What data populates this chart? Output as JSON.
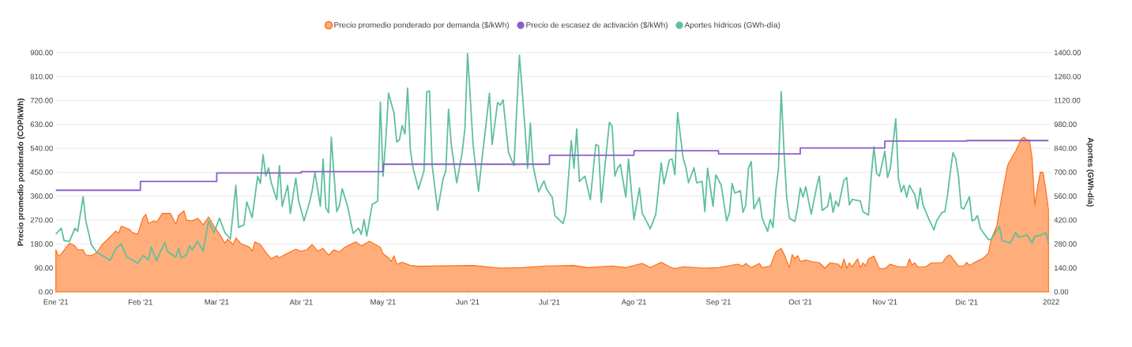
{
  "chart_data": {
    "type": "line",
    "ylabel": "Precio promedio ponderado (COP/kWh)",
    "y2label": "Aportes (GWh-día)",
    "xlim": [
      "2021-01-01",
      "2022-01-01"
    ],
    "xticks": [
      {
        "value": "2021-01-01",
        "label": "Ene '21"
      },
      {
        "value": "2021-02-01",
        "label": "Feb '21"
      },
      {
        "value": "2021-03-01",
        "label": "Mar '21"
      },
      {
        "value": "2021-04-01",
        "label": "Abr '21"
      },
      {
        "value": "2021-05-01",
        "label": "May '21"
      },
      {
        "value": "2021-06-01",
        "label": "Jun '21"
      },
      {
        "value": "2021-07-01",
        "label": "Jul '21"
      },
      {
        "value": "2021-08-01",
        "label": "Ago '21"
      },
      {
        "value": "2021-09-01",
        "label": "Sep '21"
      },
      {
        "value": "2021-10-01",
        "label": "Oct '21"
      },
      {
        "value": "2021-11-01",
        "label": "Nov '21"
      },
      {
        "value": "2021-12-01",
        "label": "Dic '21"
      },
      {
        "value": "2022-01-01",
        "label": "2022"
      }
    ],
    "ylim": [
      0,
      900
    ],
    "yticks": [
      {
        "value": 0,
        "label": "0.00"
      },
      {
        "value": 90,
        "label": "90.00"
      },
      {
        "value": 180,
        "label": "180.00"
      },
      {
        "value": 270,
        "label": "270.00"
      },
      {
        "value": 360,
        "label": "360.00"
      },
      {
        "value": 450,
        "label": "450.00"
      },
      {
        "value": 540,
        "label": "540.00"
      },
      {
        "value": 630,
        "label": "630.00"
      },
      {
        "value": 720,
        "label": "720.00"
      },
      {
        "value": 810,
        "label": "810.00"
      },
      {
        "value": 900,
        "label": "900.00"
      }
    ],
    "y2lim": [
      0,
      1400
    ],
    "y2ticks": [
      {
        "value": 0,
        "label": "0.00"
      },
      {
        "value": 140,
        "label": "140.00"
      },
      {
        "value": 280,
        "label": "280.00"
      },
      {
        "value": 420,
        "label": "420.00"
      },
      {
        "value": 560,
        "label": "560.00"
      },
      {
        "value": 700,
        "label": "700.00"
      },
      {
        "value": 840,
        "label": "840.00"
      },
      {
        "value": 980,
        "label": "980.00"
      },
      {
        "value": 1120,
        "label": "1120.00"
      },
      {
        "value": 1260,
        "label": "1260.00"
      },
      {
        "value": 1400,
        "label": "1400.00"
      }
    ],
    "grid": "y",
    "legend": "top",
    "series": [
      {
        "name": "Precio promedio ponderado por demanda ($/kWh)",
        "type": "area",
        "color": "#ff6a0e",
        "x": [
          "2021-01-01",
          "2021-01-02",
          "2021-01-03",
          "2021-01-06",
          "2021-01-08",
          "2021-01-09",
          "2021-01-11",
          "2021-01-12",
          "2021-01-14",
          "2021-01-16",
          "2021-01-18",
          "2021-01-20",
          "2021-01-23",
          "2021-01-24",
          "2021-01-25",
          "2021-01-28",
          "2021-01-29",
          "2021-01-31",
          "2021-02-02",
          "2021-02-03",
          "2021-02-04",
          "2021-02-06",
          "2021-02-07",
          "2021-02-09",
          "2021-02-12",
          "2021-02-14",
          "2021-02-15",
          "2021-02-17",
          "2021-02-18",
          "2021-02-20",
          "2021-02-22",
          "2021-02-24",
          "2021-02-26",
          "2021-02-28",
          "2021-03-02",
          "2021-03-04",
          "2021-03-05",
          "2021-03-07",
          "2021-03-08",
          "2021-03-10",
          "2021-03-13",
          "2021-03-14",
          "2021-03-15",
          "2021-03-17",
          "2021-03-19",
          "2021-03-21",
          "2021-03-23",
          "2021-03-24",
          "2021-03-26",
          "2021-03-28",
          "2021-03-30",
          "2021-04-01",
          "2021-04-03",
          "2021-04-05",
          "2021-04-07",
          "2021-04-09",
          "2021-04-11",
          "2021-04-13",
          "2021-04-15",
          "2021-04-17",
          "2021-04-18",
          "2021-04-21",
          "2021-04-23",
          "2021-04-26",
          "2021-04-30",
          "2021-05-01",
          "2021-05-03",
          "2021-05-04",
          "2021-05-05",
          "2021-05-06",
          "2021-05-08",
          "2021-05-11",
          "2021-05-14",
          "2021-06-03",
          "2021-06-13",
          "2021-06-21",
          "2021-06-30",
          "2021-07-10",
          "2021-07-15",
          "2021-07-24",
          "2021-07-29",
          "2021-08-04",
          "2021-08-07",
          "2021-08-11",
          "2021-08-14",
          "2021-08-16",
          "2021-08-19",
          "2021-08-27",
          "2021-09-01",
          "2021-09-08",
          "2021-09-10",
          "2021-09-11",
          "2021-09-13",
          "2021-09-16",
          "2021-09-17",
          "2021-09-20",
          "2021-09-22",
          "2021-09-24",
          "2021-09-25",
          "2021-09-27",
          "2021-09-28",
          "2021-09-29",
          "2021-09-30",
          "2021-10-01",
          "2021-10-03",
          "2021-10-05",
          "2021-10-08",
          "2021-10-10",
          "2021-10-12",
          "2021-10-15",
          "2021-10-16",
          "2021-10-17",
          "2021-10-18",
          "2021-10-19",
          "2021-10-20",
          "2021-10-22",
          "2021-10-23",
          "2021-10-24",
          "2021-10-25",
          "2021-10-26",
          "2021-10-28",
          "2021-10-30",
          "2021-11-01",
          "2021-11-03",
          "2021-11-06",
          "2021-11-09",
          "2021-11-10",
          "2021-11-11",
          "2021-11-12",
          "2021-11-13",
          "2021-11-16",
          "2021-11-18",
          "2021-11-22",
          "2021-11-24",
          "2021-11-25",
          "2021-11-28",
          "2021-11-30",
          "2021-12-01",
          "2021-12-02",
          "2021-12-04",
          "2021-12-07",
          "2021-12-09",
          "2021-12-10",
          "2021-12-12",
          "2021-12-14",
          "2021-12-16",
          "2021-12-18",
          "2021-12-19",
          "2021-12-21",
          "2021-12-22",
          "2021-12-23",
          "2021-12-24",
          "2021-12-25",
          "2021-12-26",
          "2021-12-27",
          "2021-12-28",
          "2021-12-29",
          "2021-12-30",
          "2021-12-31"
        ],
        "values": [
          158,
          134,
          143,
          183,
          173,
          158,
          158,
          138,
          136,
          148,
          178,
          198,
          229,
          220,
          247,
          235,
          223,
          217,
          279,
          292,
          257,
          267,
          262,
          295,
          295,
          255,
          287,
          305,
          269,
          267,
          277,
          252,
          282,
          247,
          217,
          183,
          198,
          178,
          203,
          180,
          168,
          153,
          188,
          178,
          148,
          124,
          136,
          128,
          140,
          150,
          160,
          153,
          158,
          178,
          153,
          163,
          138,
          158,
          150,
          168,
          173,
          188,
          173,
          190,
          168,
          143,
          128,
          114,
          136,
          104,
          111,
          99,
          96,
          99,
          89,
          91,
          97,
          99,
          91,
          97,
          91,
          107,
          91,
          111,
          94,
          87,
          94,
          89,
          91,
          104,
          97,
          107,
          91,
          107,
          91,
          97,
          150,
          163,
          143,
          91,
          140,
          124,
          136,
          114,
          119,
          114,
          109,
          89,
          109,
          104,
          89,
          124,
          89,
          109,
          94,
          124,
          91,
          109,
          97,
          124,
          134,
          87,
          87,
          104,
          94,
          94,
          124,
          101,
          109,
          94,
          94,
          109,
          109,
          136,
          138,
          97,
          97,
          111,
          99,
          111,
          126,
          146,
          198,
          247,
          366,
          475,
          514,
          529,
          576,
          582,
          572,
          572,
          504,
          326,
          396,
          450,
          450,
          388,
          309
        ]
      },
      {
        "name": "Precio de escasez de activación ($/kWh)",
        "type": "step",
        "color": "#8b5fc9",
        "x": [
          "2021-01-01",
          "2021-02-01",
          "2021-03-01",
          "2021-04-01",
          "2021-05-01",
          "2021-07-01",
          "2021-08-01",
          "2021-09-01",
          "2021-10-01",
          "2021-11-01",
          "2021-12-01",
          "2021-12-31"
        ],
        "values": [
          382,
          415,
          447,
          452,
          480,
          514,
          531,
          519,
          541,
          567,
          569,
          569
        ]
      },
      {
        "name": "Aportes hídricos (GWh-día)",
        "type": "line",
        "color": "#5fbf9f",
        "axis": "y2",
        "x": [
          "2021-01-01",
          "2021-01-03",
          "2021-01-04",
          "2021-01-06",
          "2021-01-08",
          "2021-01-09",
          "2021-01-11",
          "2021-01-12",
          "2021-01-14",
          "2021-01-16",
          "2021-01-19",
          "2021-01-21",
          "2021-01-23",
          "2021-01-25",
          "2021-01-27",
          "2021-01-29",
          "2021-01-31",
          "2021-02-02",
          "2021-02-04",
          "2021-02-05",
          "2021-02-07",
          "2021-02-08",
          "2021-02-10",
          "2021-02-11",
          "2021-02-14",
          "2021-02-15",
          "2021-02-16",
          "2021-02-18",
          "2021-02-19",
          "2021-02-20",
          "2021-02-22",
          "2021-02-24",
          "2021-02-26",
          "2021-02-28",
          "2021-03-02",
          "2021-03-04",
          "2021-03-06",
          "2021-03-08",
          "2021-03-09",
          "2021-03-11",
          "2021-03-12",
          "2021-03-14",
          "2021-03-16",
          "2021-03-17",
          "2021-03-18",
          "2021-03-19",
          "2021-03-20",
          "2021-03-21",
          "2021-03-23",
          "2021-03-24",
          "2021-03-25",
          "2021-03-27",
          "2021-03-28",
          "2021-03-30",
          "2021-03-31",
          "2021-04-02",
          "2021-04-04",
          "2021-04-05",
          "2021-04-06",
          "2021-04-08",
          "2021-04-09",
          "2021-04-10",
          "2021-04-11",
          "2021-04-12",
          "2021-04-14",
          "2021-04-15",
          "2021-04-16",
          "2021-04-18",
          "2021-04-20",
          "2021-04-22",
          "2021-04-23",
          "2021-04-24",
          "2021-04-25",
          "2021-04-27",
          "2021-04-29",
          "2021-04-30",
          "2021-05-01",
          "2021-05-02",
          "2021-05-03",
          "2021-05-05",
          "2021-05-06",
          "2021-05-07",
          "2021-05-08",
          "2021-05-09",
          "2021-05-10",
          "2021-05-11",
          "2021-05-12",
          "2021-05-14",
          "2021-05-16",
          "2021-05-17",
          "2021-05-18",
          "2021-05-19",
          "2021-05-21",
          "2021-05-23",
          "2021-05-24",
          "2021-05-25",
          "2021-05-26",
          "2021-05-28",
          "2021-05-30",
          "2021-05-31",
          "2021-06-01",
          "2021-06-03",
          "2021-06-05",
          "2021-06-06",
          "2021-06-08",
          "2021-06-09",
          "2021-06-10",
          "2021-06-12",
          "2021-06-13",
          "2021-06-14",
          "2021-06-16",
          "2021-06-18",
          "2021-06-20",
          "2021-06-22",
          "2021-06-23",
          "2021-06-24",
          "2021-06-25",
          "2021-06-27",
          "2021-06-29",
          "2021-06-30",
          "2021-07-02",
          "2021-07-03",
          "2021-07-06",
          "2021-07-07",
          "2021-07-09",
          "2021-07-10",
          "2021-07-11",
          "2021-07-12",
          "2021-07-14",
          "2021-07-16",
          "2021-07-18",
          "2021-07-19",
          "2021-07-20",
          "2021-07-23",
          "2021-07-24",
          "2021-07-25",
          "2021-07-26",
          "2021-07-27",
          "2021-07-29",
          "2021-07-30",
          "2021-08-01",
          "2021-08-03",
          "2021-08-04",
          "2021-08-07",
          "2021-08-09",
          "2021-08-11",
          "2021-08-12",
          "2021-08-14",
          "2021-08-15",
          "2021-08-16",
          "2021-08-17",
          "2021-08-19",
          "2021-08-20",
          "2021-08-21",
          "2021-08-23",
          "2021-08-24",
          "2021-08-26",
          "2021-08-27",
          "2021-08-28",
          "2021-08-30",
          "2021-08-31",
          "2021-09-02",
          "2021-09-04",
          "2021-09-05",
          "2021-09-06",
          "2021-09-07",
          "2021-09-09",
          "2021-09-10",
          "2021-09-11",
          "2021-09-12",
          "2021-09-13",
          "2021-09-14",
          "2021-09-16",
          "2021-09-17",
          "2021-09-19",
          "2021-09-20",
          "2021-09-21",
          "2021-09-22",
          "2021-09-23",
          "2021-09-24",
          "2021-09-25",
          "2021-09-26",
          "2021-09-27",
          "2021-09-29",
          "2021-09-30",
          "2021-10-01",
          "2021-10-02",
          "2021-10-03",
          "2021-10-05",
          "2021-10-07",
          "2021-10-08",
          "2021-10-09",
          "2021-10-11",
          "2021-10-12",
          "2021-10-13",
          "2021-10-14",
          "2021-10-15",
          "2021-10-17",
          "2021-10-18",
          "2021-10-19",
          "2021-10-20",
          "2021-10-23",
          "2021-10-24",
          "2021-10-26",
          "2021-10-27",
          "2021-10-28",
          "2021-10-29",
          "2021-10-30",
          "2021-11-01",
          "2021-11-02",
          "2021-11-03",
          "2021-11-05",
          "2021-11-06",
          "2021-11-07",
          "2021-11-08",
          "2021-11-09",
          "2021-11-10",
          "2021-11-12",
          "2021-11-13",
          "2021-11-14",
          "2021-11-15",
          "2021-11-17",
          "2021-11-19",
          "2021-11-20",
          "2021-11-22",
          "2021-11-23",
          "2021-11-24",
          "2021-11-25",
          "2021-11-26",
          "2021-11-27",
          "2021-11-28",
          "2021-11-29",
          "2021-11-30",
          "2021-12-02",
          "2021-12-03",
          "2021-12-04",
          "2021-12-05",
          "2021-12-06",
          "2021-12-09",
          "2021-12-10",
          "2021-12-13",
          "2021-12-14",
          "2021-12-17",
          "2021-12-19",
          "2021-12-20",
          "2021-12-22",
          "2021-12-23",
          "2021-12-25",
          "2021-12-26",
          "2021-12-28",
          "2021-12-30",
          "2021-12-31"
        ],
        "values": [
          338,
          372,
          300,
          295,
          372,
          354,
          557,
          415,
          277,
          231,
          203,
          185,
          254,
          280,
          203,
          188,
          166,
          212,
          188,
          262,
          181,
          223,
          289,
          234,
          203,
          254,
          197,
          218,
          269,
          246,
          295,
          238,
          415,
          346,
          431,
          346,
          308,
          623,
          377,
          392,
          526,
          434,
          677,
          634,
          803,
          677,
          726,
          638,
          539,
          739,
          500,
          623,
          458,
          665,
          535,
          415,
          523,
          592,
          700,
          500,
          777,
          493,
          462,
          905,
          469,
          505,
          603,
          500,
          342,
          372,
          336,
          423,
          326,
          511,
          531,
          1111,
          677,
          892,
          1162,
          1046,
          877,
          890,
          973,
          923,
          1192,
          831,
          723,
          600,
          708,
          1169,
          1176,
          739,
          477,
          661,
          708,
          1069,
          862,
          638,
          815,
          954,
          1395,
          862,
          588,
          739,
          1015,
          1162,
          862,
          1108,
          1092,
          1123,
          815,
          739,
          1385,
          969,
          723,
          988,
          739,
          585,
          649,
          600,
          554,
          446,
          400,
          462,
          885,
          723,
          954,
          646,
          677,
          539,
          862,
          854,
          523,
          992,
          969,
          677,
          723,
          746,
          554,
          777,
          423,
          608,
          462,
          369,
          454,
          754,
          631,
          772,
          777,
          685,
          1049,
          785,
          731,
          638,
          726,
          638,
          646,
          469,
          723,
          500,
          685,
          623,
          415,
          462,
          634,
          577,
          592,
          465,
          508,
          723,
          762,
          485,
          551,
          431,
          354,
          423,
          377,
          592,
          723,
          1172,
          831,
          554,
          431,
          412,
          492,
          608,
          554,
          615,
          454,
          615,
          677,
          477,
          500,
          577,
          465,
          531,
          500,
          654,
          669,
          508,
          541,
          531,
          469,
          449,
          677,
          849,
          692,
          677,
          823,
          669,
          723,
          1012,
          661,
          585,
          623,
          554,
          623,
          569,
          485,
          608,
          508,
          431,
          362,
          415,
          465,
          469,
          569,
          700,
          815,
          777,
          677,
          492,
          485,
          557,
          415,
          423,
          446,
          372,
          305,
          308,
          382,
          300,
          285,
          346,
          320,
          326,
          335,
          285,
          326,
          331,
          346,
          289
        ]
      }
    ]
  }
}
